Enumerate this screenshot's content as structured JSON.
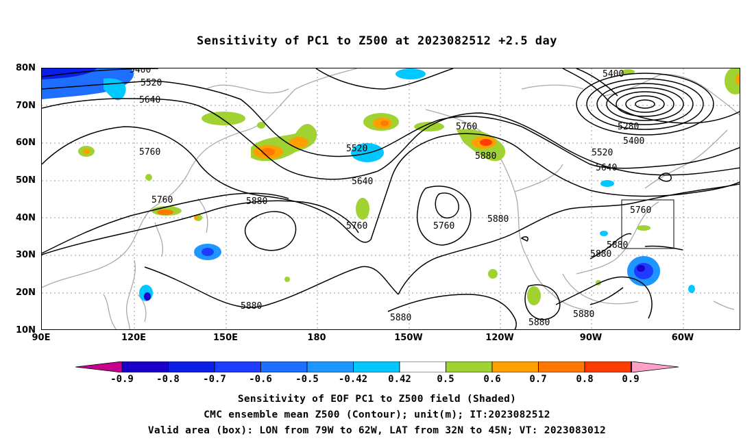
{
  "title": "Sensitivity of PC1 to Z500 at 2023082512 +2.5 day",
  "map": {
    "lat_labels": [
      "80N",
      "70N",
      "60N",
      "50N",
      "40N",
      "30N",
      "20N",
      "10N"
    ],
    "lon_labels": [
      "90E",
      "120E",
      "150E",
      "180",
      "150W",
      "120W",
      "90W",
      "60W"
    ],
    "contour_labels": [
      {
        "text": "5400"
      },
      {
        "text": "5520"
      },
      {
        "text": "5640"
      },
      {
        "text": "5760"
      },
      {
        "text": "5760"
      },
      {
        "text": "5880"
      },
      {
        "text": "5520"
      },
      {
        "text": "5640"
      },
      {
        "text": "5760"
      },
      {
        "text": "5760"
      },
      {
        "text": "5760"
      },
      {
        "text": "5880"
      },
      {
        "text": "5880"
      },
      {
        "text": "5880"
      },
      {
        "text": "5880"
      },
      {
        "text": "5400"
      },
      {
        "text": "5280"
      },
      {
        "text": "5400"
      },
      {
        "text": "5520"
      },
      {
        "text": "5640"
      },
      {
        "text": "5760"
      },
      {
        "text": "5880"
      },
      {
        "text": "5880"
      },
      {
        "text": "5880"
      },
      {
        "text": "5880"
      }
    ],
    "valid_box_color": "#000000"
  },
  "colorbar": {
    "colors": [
      "#c5008c",
      "#1a00c8",
      "#0a1ee6",
      "#1e3cff",
      "#1e6eff",
      "#1e96ff",
      "#00c8ff",
      "#ffffff",
      "#a0d232",
      "#ffa000",
      "#ff7800",
      "#ff3c00",
      "#ff0000",
      "#ffa0c8"
    ],
    "labels": [
      "-0.9",
      "-0.8",
      "-0.7",
      "-0.6",
      "-0.5",
      "-0.42",
      "0.42",
      "0.5",
      "0.6",
      "0.7",
      "0.8",
      "0.9"
    ]
  },
  "captions": [
    "Sensitivity of EOF PC1 to Z500 field (Shaded)",
    "CMC ensemble mean Z500 (Contour); unit(m); IT:2023082512",
    "Valid area (box): LON from 79W to 62W, LAT from 32N to 45N; VT: 2023083012"
  ]
}
